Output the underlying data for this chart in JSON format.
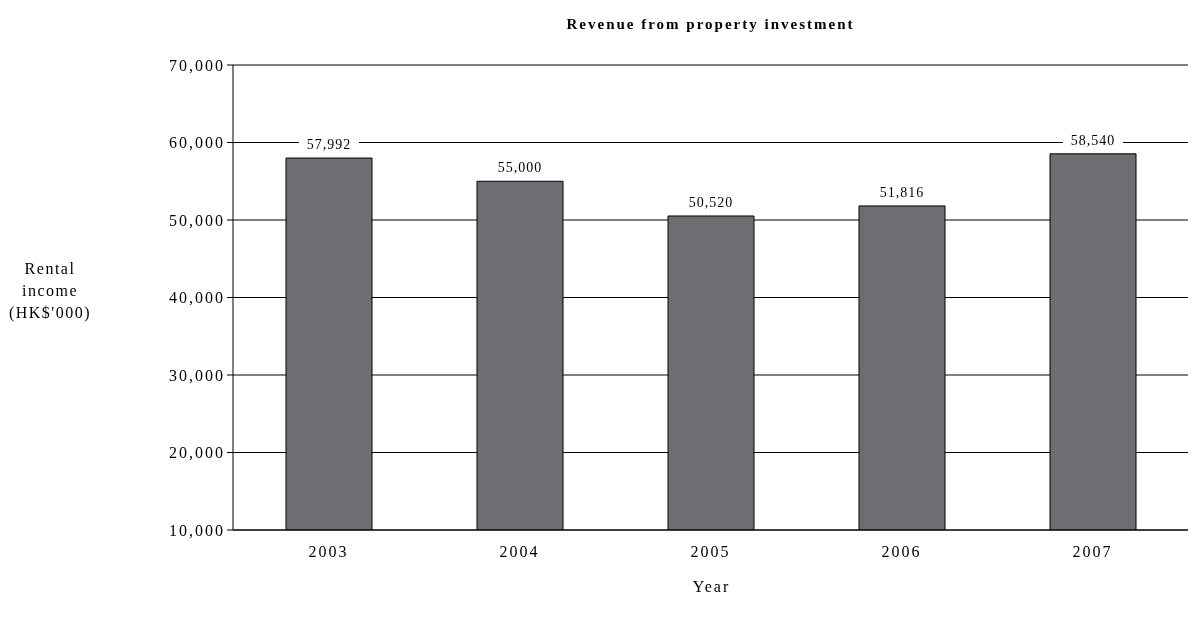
{
  "chart_data": {
    "type": "bar",
    "title": "Revenue from property investment",
    "xlabel": "Year",
    "ylabel": "Rental income (HK$'000)",
    "categories": [
      "2003",
      "2004",
      "2005",
      "2006",
      "2007"
    ],
    "values": [
      57992,
      55000,
      50520,
      51816,
      58540
    ],
    "value_labels": [
      "57,992",
      "55,000",
      "50,520",
      "51,816",
      "58,540"
    ],
    "color": "#6d6e71",
    "ylim": [
      10000,
      70000
    ],
    "yticks": [
      {
        "value": 10000,
        "label": "10,000"
      },
      {
        "value": 20000,
        "label": "20,000"
      },
      {
        "value": 30000,
        "label": "30,000"
      },
      {
        "value": 40000,
        "label": "40,000"
      },
      {
        "value": 50000,
        "label": "50,000"
      },
      {
        "value": 60000,
        "label": "60,000"
      },
      {
        "value": 70000,
        "label": "70,000"
      }
    ],
    "grid": "y"
  }
}
